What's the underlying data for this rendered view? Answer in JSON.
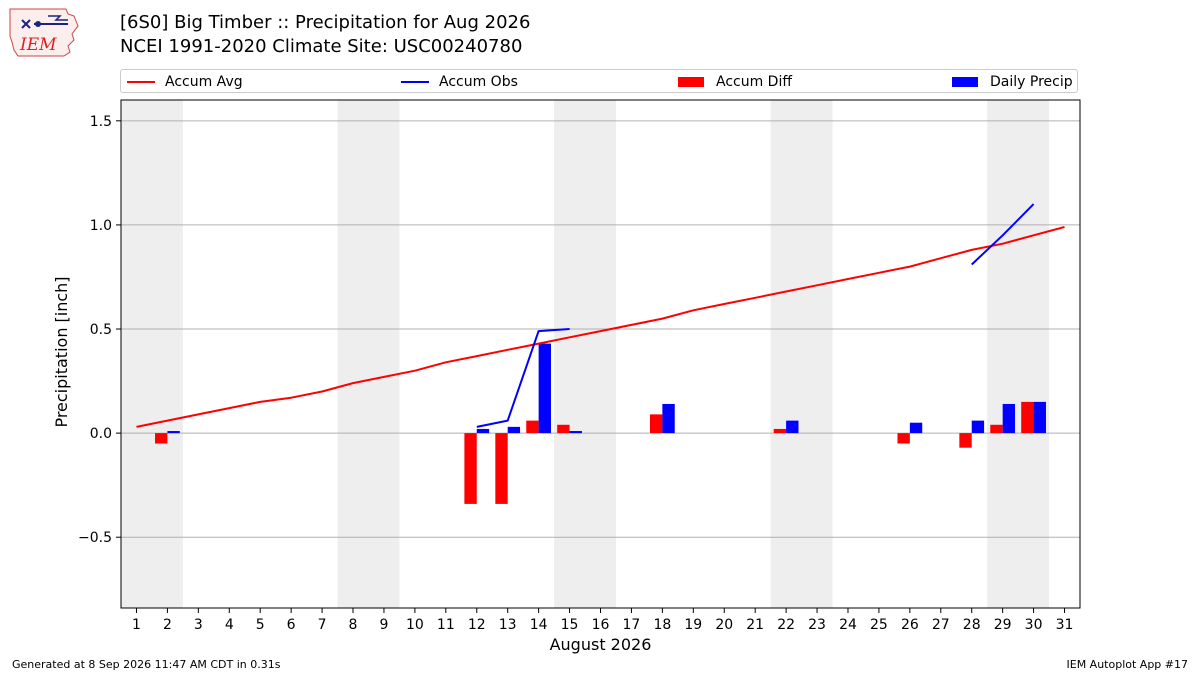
{
  "header": {
    "logo_text": "IEM",
    "title_line1": "[6S0] Big Timber :: Precipitation for Aug 2026",
    "title_line2": "NCEI 1991-2020 Climate Site: USC00240780"
  },
  "legend": {
    "items": [
      {
        "label": "Accum Avg",
        "kind": "line",
        "color": "#ff0000"
      },
      {
        "label": "Accum Obs",
        "kind": "line",
        "color": "#0000ff"
      },
      {
        "label": "Accum Diff",
        "kind": "patch",
        "color": "#ff0000"
      },
      {
        "label": "Daily Precip",
        "kind": "patch",
        "color": "#0000ff"
      }
    ]
  },
  "footer": {
    "left": "Generated at 8 Sep 2026 11:47 AM CDT in 0.31s",
    "right": "IEM Autoplot App #17"
  },
  "chart_data": {
    "type": "bar",
    "xlabel": "August 2026",
    "ylabel": "Precipitation [inch]",
    "xlim": [
      0.5,
      31.5
    ],
    "ylim": [
      -0.84,
      1.6
    ],
    "y_ticks": [
      1.5,
      1.0,
      0.5,
      0.0,
      -0.5
    ],
    "y_tick_labels": [
      "1.5",
      "1.0",
      "0.5",
      "0.0",
      "−0.5"
    ],
    "x_ticks": [
      1,
      2,
      3,
      4,
      5,
      6,
      7,
      8,
      9,
      10,
      11,
      12,
      13,
      14,
      15,
      16,
      17,
      18,
      19,
      20,
      21,
      22,
      23,
      24,
      25,
      26,
      27,
      28,
      29,
      30,
      31
    ],
    "weekend_bands": [
      [
        1,
        2
      ],
      [
        8,
        9
      ],
      [
        15,
        16
      ],
      [
        22,
        23
      ],
      [
        29,
        30
      ]
    ],
    "grid": true,
    "colors": {
      "avg": "#ff0000",
      "obs": "#0000ff",
      "diff": "#ff0000",
      "daily": "#0000ff",
      "band": "#eeeeee",
      "grid": "#b0b0b0"
    },
    "series": [
      {
        "name": "Accum Avg",
        "type": "line",
        "x": [
          1,
          2,
          3,
          4,
          5,
          6,
          7,
          8,
          9,
          10,
          11,
          12,
          13,
          14,
          15,
          16,
          17,
          18,
          19,
          20,
          21,
          22,
          23,
          24,
          25,
          26,
          27,
          28,
          29,
          30,
          31
        ],
        "values": [
          0.03,
          0.06,
          0.09,
          0.12,
          0.15,
          0.17,
          0.2,
          0.24,
          0.27,
          0.3,
          0.34,
          0.37,
          0.4,
          0.43,
          0.46,
          0.49,
          0.52,
          0.55,
          0.59,
          0.62,
          0.65,
          0.68,
          0.71,
          0.74,
          0.77,
          0.8,
          0.84,
          0.88,
          0.91,
          0.95,
          0.99
        ]
      },
      {
        "name": "Accum Obs",
        "type": "line",
        "segments": [
          {
            "x": [
              12,
              13,
              14,
              15
            ],
            "values": [
              0.03,
              0.06,
              0.49,
              0.5
            ]
          },
          {
            "x": [
              28,
              29,
              30
            ],
            "values": [
              0.81,
              0.95,
              1.1
            ]
          }
        ]
      },
      {
        "name": "Accum Diff",
        "type": "bar",
        "x": [
          2,
          12,
          13,
          14,
          15,
          18,
          22,
          26,
          28,
          29,
          30
        ],
        "values": [
          -0.05,
          -0.34,
          -0.34,
          0.06,
          0.04,
          0.09,
          0.02,
          -0.05,
          -0.07,
          0.04,
          0.15
        ]
      },
      {
        "name": "Daily Precip",
        "type": "bar",
        "x": [
          2,
          12,
          13,
          14,
          15,
          18,
          22,
          26,
          28,
          29,
          30
        ],
        "values": [
          0.01,
          0.02,
          0.03,
          0.43,
          0.01,
          0.14,
          0.06,
          0.05,
          0.06,
          0.14,
          0.15
        ]
      }
    ]
  }
}
